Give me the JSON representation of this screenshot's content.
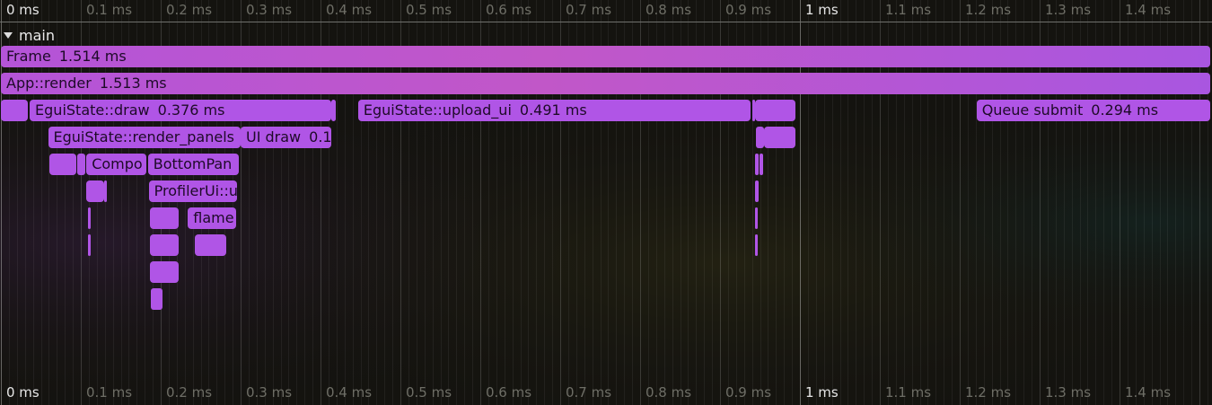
{
  "colors": {
    "background": "#14130f",
    "scope_fill": "#b055e6",
    "scope_text": "#1e0a28",
    "tick_label_dim": "#6e6e66",
    "tick_label_bright": "#e6e6e6"
  },
  "timeline": {
    "tick_labels": [
      "0 ms",
      "0.1 ms",
      "0.2 ms",
      "0.3 ms",
      "0.4 ms",
      "0.5 ms",
      "0.6 ms",
      "0.7 ms",
      "0.8 ms",
      "0.9 ms",
      "1 ms",
      "1.1 ms",
      "1.2 ms",
      "1.3 ms",
      "1.4 ms"
    ],
    "tick_values_ms": [
      0,
      0.1,
      0.2,
      0.3,
      0.4,
      0.5,
      0.6,
      0.7,
      0.8,
      0.9,
      1.0,
      1.1,
      1.2,
      1.3,
      1.4
    ],
    "bright_labels": [
      "0 ms",
      "1 ms"
    ],
    "minor_step_ms": 0.01,
    "visible_end_ms": 1.515
  },
  "track": {
    "name": "main",
    "collapse_icon": "triangle-down-icon"
  },
  "scopes": [
    {
      "name": "Frame",
      "duration": "1.514 ms",
      "start_ms": 0.0,
      "end_ms": 1.514,
      "depth": 0,
      "big": true
    },
    {
      "name": "App::render",
      "duration": "1.513 ms",
      "start_ms": 0.0,
      "end_ms": 1.514,
      "depth": 1,
      "big": true
    },
    {
      "name": "",
      "duration": "",
      "start_ms": 0.0,
      "end_ms": 0.034,
      "depth": 2
    },
    {
      "name": "EguiState::draw",
      "duration": "0.376 ms",
      "start_ms": 0.036,
      "end_ms": 0.413,
      "depth": 2
    },
    {
      "name": "",
      "duration": "",
      "start_ms": 0.414,
      "end_ms": 0.419,
      "depth": 2
    },
    {
      "name": "EguiState::upload_ui",
      "duration": "0.491 ms",
      "start_ms": 0.447,
      "end_ms": 0.938,
      "depth": 2
    },
    {
      "name": "",
      "duration": "",
      "start_ms": 0.94,
      "end_ms": 0.943,
      "depth": 2
    },
    {
      "name": "",
      "duration": "",
      "start_ms": 0.944,
      "end_ms": 0.994,
      "depth": 2
    },
    {
      "name": "Queue submit",
      "duration": "0.294 ms",
      "start_ms": 1.221,
      "end_ms": 1.514,
      "depth": 2
    },
    {
      "name": "EguiState::render_panels",
      "duration": "",
      "start_ms": 0.059,
      "end_ms": 0.3,
      "depth": 3
    },
    {
      "name": "UI draw",
      "duration": "0.1",
      "start_ms": 0.3,
      "end_ms": 0.413,
      "depth": 3
    },
    {
      "name": "",
      "duration": "",
      "start_ms": 0.945,
      "end_ms": 0.955,
      "depth": 3
    },
    {
      "name": "",
      "duration": "",
      "start_ms": 0.955,
      "end_ms": 0.994,
      "depth": 3
    },
    {
      "name": "",
      "duration": "",
      "start_ms": 0.061,
      "end_ms": 0.094,
      "depth": 4
    },
    {
      "name": "",
      "duration": "",
      "start_ms": 0.095,
      "end_ms": 0.106,
      "depth": 4
    },
    {
      "name": "Compo",
      "duration": "",
      "start_ms": 0.107,
      "end_ms": 0.182,
      "depth": 4
    },
    {
      "name": "BottomPan",
      "duration": "",
      "start_ms": 0.184,
      "end_ms": 0.298,
      "depth": 4
    },
    {
      "name": "",
      "duration": "",
      "start_ms": 0.944,
      "end_ms": 0.948,
      "depth": 4
    },
    {
      "name": "",
      "duration": "",
      "start_ms": 0.949,
      "end_ms": 0.954,
      "depth": 4
    },
    {
      "name": "",
      "duration": "",
      "start_ms": 0.107,
      "end_ms": 0.129,
      "depth": 5
    },
    {
      "name": "",
      "duration": "",
      "start_ms": 0.129,
      "end_ms": 0.13,
      "depth": 5
    },
    {
      "name": "ProfilerUi::u",
      "duration": "",
      "start_ms": 0.185,
      "end_ms": 0.296,
      "depth": 5
    },
    {
      "name": "",
      "duration": "",
      "start_ms": 0.944,
      "end_ms": 0.948,
      "depth": 5
    },
    {
      "name": "",
      "duration": "",
      "start_ms": 0.109,
      "end_ms": 0.112,
      "depth": 6
    },
    {
      "name": "",
      "duration": "",
      "start_ms": 0.186,
      "end_ms": 0.222,
      "depth": 6
    },
    {
      "name": "flame",
      "duration": "",
      "start_ms": 0.234,
      "end_ms": 0.294,
      "depth": 6
    },
    {
      "name": "",
      "duration": "",
      "start_ms": 0.944,
      "end_ms": 0.947,
      "depth": 6
    },
    {
      "name": "",
      "duration": "",
      "start_ms": 0.109,
      "end_ms": 0.112,
      "depth": 7
    },
    {
      "name": "",
      "duration": "",
      "start_ms": 0.186,
      "end_ms": 0.222,
      "depth": 7
    },
    {
      "name": "",
      "duration": "",
      "start_ms": 0.243,
      "end_ms": 0.282,
      "depth": 7
    },
    {
      "name": "",
      "duration": "",
      "start_ms": 0.944,
      "end_ms": 0.947,
      "depth": 7
    },
    {
      "name": "",
      "duration": "",
      "start_ms": 0.187,
      "end_ms": 0.222,
      "depth": 8
    },
    {
      "name": "",
      "duration": "",
      "start_ms": 0.188,
      "end_ms": 0.202,
      "depth": 9
    }
  ]
}
